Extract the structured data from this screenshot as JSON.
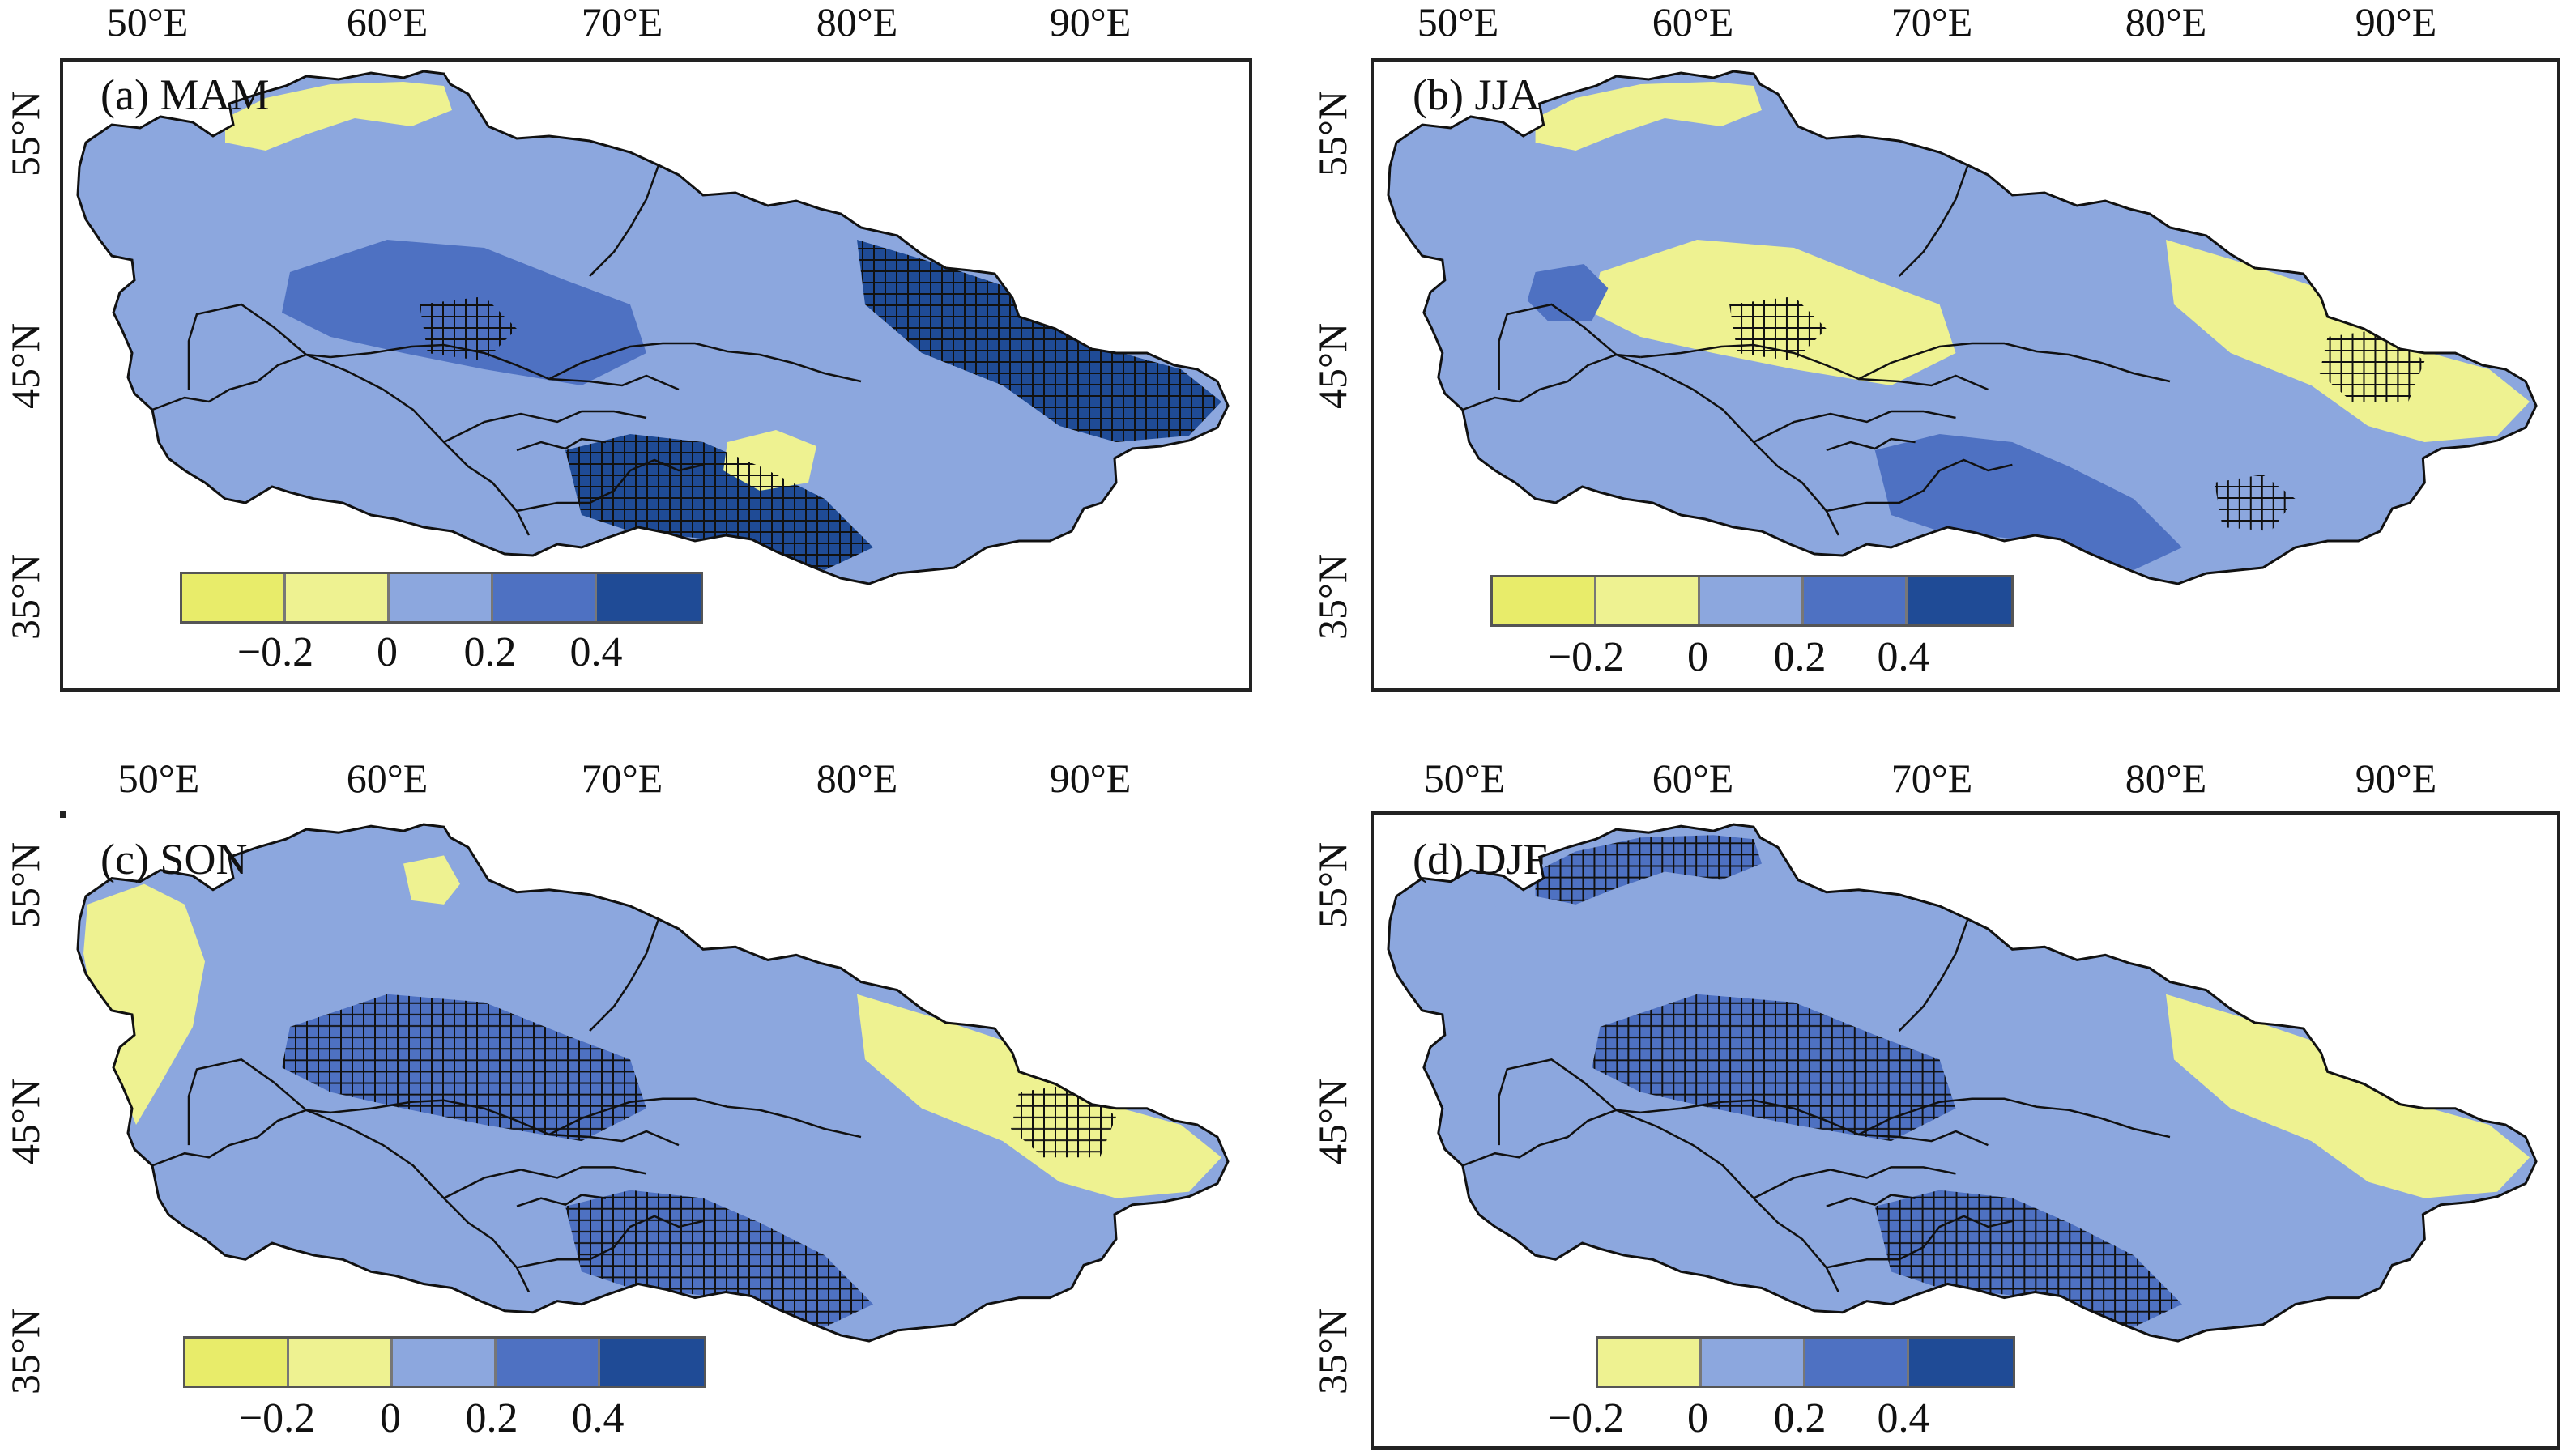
{
  "colors": {
    "yellow_strong": "#e8ec6a",
    "yellow_light": "#eef291",
    "blue_light": "#8ca7de",
    "blue_mid": "#4e71c2",
    "blue_dark": "#1f4b96",
    "border": "#111111",
    "hatch": "#111111"
  },
  "axes": {
    "lon_labels": [
      "50°E",
      "60°E",
      "70°E",
      "80°E",
      "90°E"
    ],
    "lat_labels": [
      "55°N",
      "45°N",
      "35°N"
    ]
  },
  "panels": [
    {
      "id": "a",
      "title": "(a) MAM",
      "legend": {
        "colors": [
          "yellow_strong",
          "yellow_light",
          "blue_light",
          "blue_mid",
          "blue_dark"
        ],
        "ticks": [
          "−0.2",
          "0",
          "0.2",
          "0.4"
        ]
      },
      "patches": [
        {
          "color": "yellow_light",
          "shape": "north"
        },
        {
          "color": "blue_mid",
          "shape": "center"
        },
        {
          "color": "blue_dark",
          "shape": "east"
        },
        {
          "color": "blue_dark",
          "shape": "south"
        },
        {
          "color": "yellow_light",
          "shape": "spot_south_center"
        }
      ],
      "hatch": [
        "east",
        "south",
        "center_small"
      ]
    },
    {
      "id": "b",
      "title": "(b) JJA",
      "legend": {
        "colors": [
          "yellow_strong",
          "yellow_light",
          "blue_light",
          "blue_mid",
          "blue_dark"
        ],
        "ticks": [
          "−0.2",
          "0",
          "0.2",
          "0.4"
        ]
      },
      "patches": [
        {
          "color": "yellow_light",
          "shape": "north"
        },
        {
          "color": "yellow_light",
          "shape": "center"
        },
        {
          "color": "yellow_light",
          "shape": "east"
        },
        {
          "color": "blue_mid",
          "shape": "south"
        },
        {
          "color": "blue_mid",
          "shape": "spot_west"
        }
      ],
      "hatch": [
        "spot_east",
        "spot_southeast",
        "center_small"
      ]
    },
    {
      "id": "c",
      "title": "(c) SON",
      "legend": {
        "colors": [
          "yellow_strong",
          "yellow_light",
          "blue_light",
          "blue_mid",
          "blue_dark"
        ],
        "ticks": [
          "−0.2",
          "0",
          "0.2",
          "0.4"
        ]
      },
      "patches": [
        {
          "color": "yellow_light",
          "shape": "west"
        },
        {
          "color": "blue_mid",
          "shape": "south"
        },
        {
          "color": "blue_mid",
          "shape": "center"
        },
        {
          "color": "yellow_light",
          "shape": "east"
        },
        {
          "color": "yellow_light",
          "shape": "spot_north"
        }
      ],
      "hatch": [
        "center",
        "south",
        "spot_east"
      ]
    },
    {
      "id": "d",
      "title": "(d) DJF",
      "legend": {
        "colors": [
          "yellow_light",
          "blue_light",
          "blue_mid",
          "blue_dark"
        ],
        "ticks": [
          "−0.2",
          "0",
          "0.2",
          "0.4"
        ]
      },
      "patches": [
        {
          "color": "blue_mid",
          "shape": "center"
        },
        {
          "color": "blue_mid",
          "shape": "north"
        },
        {
          "color": "blue_mid",
          "shape": "south"
        },
        {
          "color": "yellow_light",
          "shape": "east"
        },
        {
          "color": "blue_light",
          "shape": "west"
        }
      ],
      "hatch": [
        "center",
        "north",
        "south"
      ]
    }
  ]
}
